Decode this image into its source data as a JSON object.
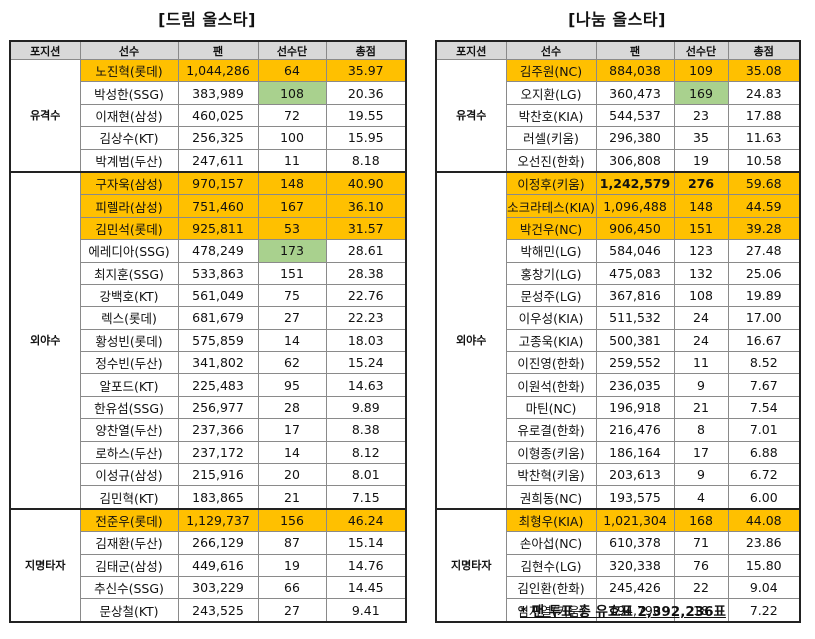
{
  "left": {
    "title": "[드림 올스타]",
    "headers": [
      "포지션",
      "선수",
      "팬",
      "선수단",
      "총점"
    ],
    "groups": [
      {
        "position": "유격수",
        "rows": [
          {
            "name": "노진혁(롯데)",
            "fan": "1,044,286",
            "team": "64",
            "total": "35.97",
            "hl": true
          },
          {
            "name": "박성한(SSG)",
            "fan": "383,989",
            "team": "108",
            "total": "20.36",
            "green": true
          },
          {
            "name": "이재현(삼성)",
            "fan": "460,025",
            "team": "72",
            "total": "19.55"
          },
          {
            "name": "김상수(KT)",
            "fan": "256,325",
            "team": "100",
            "total": "15.95"
          },
          {
            "name": "박계범(두산)",
            "fan": "247,611",
            "team": "11",
            "total": "8.18"
          }
        ]
      },
      {
        "position": "외야수",
        "rows": [
          {
            "name": "구자욱(삼성)",
            "fan": "970,157",
            "team": "148",
            "total": "40.90",
            "hl": true
          },
          {
            "name": "피렐라(삼성)",
            "fan": "751,460",
            "team": "167",
            "total": "36.10",
            "hl": true
          },
          {
            "name": "김민석(롯데)",
            "fan": "925,811",
            "team": "53",
            "total": "31.57",
            "hl": true
          },
          {
            "name": "에레디아(SSG)",
            "fan": "478,249",
            "team": "173",
            "total": "28.61",
            "green": true
          },
          {
            "name": "최지훈(SSG)",
            "fan": "533,863",
            "team": "151",
            "total": "28.38"
          },
          {
            "name": "강백호(KT)",
            "fan": "561,049",
            "team": "75",
            "total": "22.76"
          },
          {
            "name": "렉스(롯데)",
            "fan": "681,679",
            "team": "27",
            "total": "22.23"
          },
          {
            "name": "황성빈(롯데)",
            "fan": "575,859",
            "team": "14",
            "total": "18.03"
          },
          {
            "name": "정수빈(두산)",
            "fan": "341,802",
            "team": "62",
            "total": "15.24"
          },
          {
            "name": "알포드(KT)",
            "fan": "225,483",
            "team": "95",
            "total": "14.63"
          },
          {
            "name": "한유섬(SSG)",
            "fan": "256,977",
            "team": "28",
            "total": "9.89"
          },
          {
            "name": "양찬열(두산)",
            "fan": "237,366",
            "team": "17",
            "total": "8.38"
          },
          {
            "name": "로하스(두산)",
            "fan": "237,172",
            "team": "14",
            "total": "8.12"
          },
          {
            "name": "이성규(삼성)",
            "fan": "215,916",
            "team": "20",
            "total": "8.01"
          },
          {
            "name": "김민혁(KT)",
            "fan": "183,865",
            "team": "21",
            "total": "7.15"
          }
        ]
      },
      {
        "position": "지명타자",
        "rows": [
          {
            "name": "전준우(롯데)",
            "fan": "1,129,737",
            "team": "156",
            "total": "46.24",
            "hl": true
          },
          {
            "name": "김재환(두산)",
            "fan": "266,129",
            "team": "87",
            "total": "15.14"
          },
          {
            "name": "김태군(삼성)",
            "fan": "449,616",
            "team": "19",
            "total": "14.76"
          },
          {
            "name": "추신수(SSG)",
            "fan": "303,229",
            "team": "66",
            "total": "14.45"
          },
          {
            "name": "문상철(KT)",
            "fan": "243,525",
            "team": "27",
            "total": "9.41"
          }
        ]
      }
    ]
  },
  "right": {
    "title": "[나눔 올스타]",
    "headers": [
      "포지션",
      "선수",
      "팬",
      "선수단",
      "총점"
    ],
    "groups": [
      {
        "position": "유격수",
        "rows": [
          {
            "name": "김주원(NC)",
            "fan": "884,038",
            "team": "109",
            "total": "35.08",
            "hl": true
          },
          {
            "name": "오지환(LG)",
            "fan": "360,473",
            "team": "169",
            "total": "24.83",
            "green": true
          },
          {
            "name": "박찬호(KIA)",
            "fan": "544,537",
            "team": "23",
            "total": "17.88"
          },
          {
            "name": "러셀(키움)",
            "fan": "296,380",
            "team": "35",
            "total": "11.63"
          },
          {
            "name": "오선진(한화)",
            "fan": "306,808",
            "team": "19",
            "total": "10.58"
          }
        ]
      },
      {
        "position": "외야수",
        "rows": [
          {
            "name": "이정후(키움)",
            "fan": "1,242,579",
            "team": "276",
            "total": "59.68",
            "hl": true,
            "bold": true
          },
          {
            "name": "소크라테스(KIA)",
            "fan": "1,096,488",
            "team": "148",
            "total": "44.59",
            "hl": true
          },
          {
            "name": "박건우(NC)",
            "fan": "906,450",
            "team": "151",
            "total": "39.28",
            "hl": true
          },
          {
            "name": "박해민(LG)",
            "fan": "584,046",
            "team": "123",
            "total": "27.48"
          },
          {
            "name": "홍창기(LG)",
            "fan": "475,083",
            "team": "132",
            "total": "25.06"
          },
          {
            "name": "문성주(LG)",
            "fan": "367,816",
            "team": "108",
            "total": "19.89"
          },
          {
            "name": "이우성(KIA)",
            "fan": "511,532",
            "team": "24",
            "total": "17.00"
          },
          {
            "name": "고종욱(KIA)",
            "fan": "500,381",
            "team": "24",
            "total": "16.67"
          },
          {
            "name": "이진영(한화)",
            "fan": "259,552",
            "team": "11",
            "total": "8.52"
          },
          {
            "name": "이원석(한화)",
            "fan": "236,035",
            "team": "9",
            "total": "7.67"
          },
          {
            "name": "마틴(NC)",
            "fan": "196,918",
            "team": "21",
            "total": "7.54"
          },
          {
            "name": "유로결(한화)",
            "fan": "216,476",
            "team": "8",
            "total": "7.01"
          },
          {
            "name": "이형종(키움)",
            "fan": "186,164",
            "team": "17",
            "total": "6.88"
          },
          {
            "name": "박찬혁(키움)",
            "fan": "203,613",
            "team": "9",
            "total": "6.72"
          },
          {
            "name": "권희동(NC)",
            "fan": "193,575",
            "team": "4",
            "total": "6.00"
          }
        ]
      },
      {
        "position": "지명타자",
        "rows": [
          {
            "name": "최형우(KIA)",
            "fan": "1,021,304",
            "team": "168",
            "total": "44.08",
            "hl": true
          },
          {
            "name": "손아섭(NC)",
            "fan": "610,378",
            "team": "71",
            "total": "23.86"
          },
          {
            "name": "김현수(LG)",
            "fan": "320,338",
            "team": "76",
            "total": "15.80"
          },
          {
            "name": "김인환(한화)",
            "fan": "245,426",
            "team": "22",
            "total": "9.04"
          },
          {
            "name": "임지열(키움)",
            "fan": "194,790",
            "team": "18",
            "total": "7.22"
          }
        ]
      }
    ]
  },
  "footnote": "* 팬 투표 총 유효표 2,392,236표",
  "colors": {
    "highlight": "#ffc000",
    "green": "#a9d18e",
    "header": "#d8d8d8"
  }
}
